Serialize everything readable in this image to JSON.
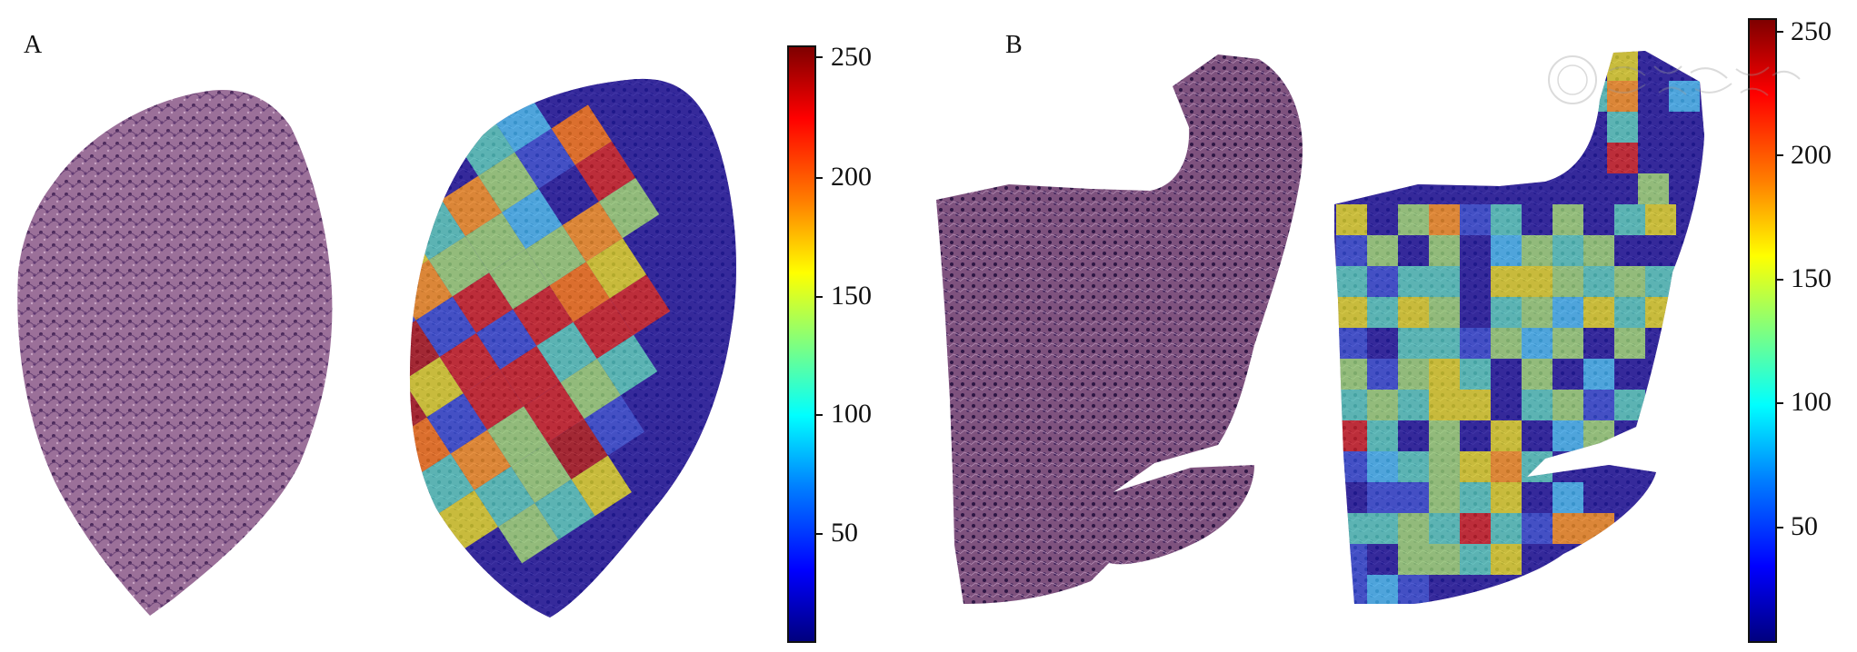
{
  "panels": [
    {
      "label": "A",
      "colorbar_ticks": [
        "250",
        "200",
        "150",
        "100",
        "50"
      ]
    },
    {
      "label": "B",
      "colorbar_ticks": [
        "250",
        "200",
        "150",
        "100",
        "50"
      ]
    }
  ],
  "colormap": [
    "#00007f",
    "#0000ff",
    "#007fff",
    "#00ffff",
    "#7fff7f",
    "#ffff00",
    "#ff7f00",
    "#ff0000",
    "#7f0000"
  ],
  "tissue_color": "#8a5f8c",
  "watermark_icon": "seal-icon"
}
